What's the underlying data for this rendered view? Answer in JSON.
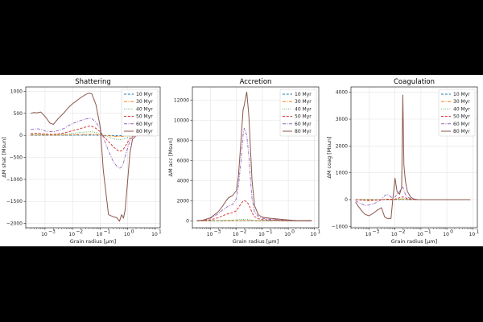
{
  "figure": {
    "background": "#ffffff"
  },
  "series_styles": [
    {
      "name": "10 Myr",
      "color": "#1f77b4",
      "dash": "3,1.8"
    },
    {
      "name": "30 Myr",
      "color": "#ff7f0e",
      "dash": "4,1.5,1,1.5"
    },
    {
      "name": "40 Myr",
      "color": "#2ca02c",
      "dash": "0.8,1.6"
    },
    {
      "name": "50 Myr",
      "color": "#d62728",
      "dash": "3,1.8"
    },
    {
      "name": "60 Myr",
      "color": "#9467bd",
      "dash": "4,1.5,1,1.5"
    },
    {
      "name": "80 Myr",
      "color": "#8c564b",
      "dash": ""
    }
  ],
  "chart_data": [
    {
      "type": "line",
      "title": "Shattering",
      "xlabel": "Grain radius [µm]",
      "ylabel": "ΔM shat [Msun]",
      "xscale": "log",
      "xlim": [
        0.0002,
        15
      ],
      "ylim": [
        -2100,
        1100
      ],
      "yticks": [
        -2000,
        -1500,
        -1000,
        -500,
        0,
        500,
        1000
      ],
      "ytick_labels": [
        "−2000",
        "−1500",
        "−1000",
        "−500",
        "0",
        "500",
        "1000"
      ],
      "xticks": [
        -3,
        -2,
        -1,
        0,
        1
      ],
      "xtick_labels": [
        "10",
        "10",
        "10",
        "10",
        "10"
      ],
      "xtick_exponents": [
        "−3",
        "−2",
        "−1",
        "0",
        "1"
      ],
      "legend": {
        "entries": [
          "10 Myr",
          "30 Myr",
          "40 Myr",
          "50 Myr",
          "60 Myr",
          "80 Myr"
        ],
        "loc": "upper right"
      },
      "x": [
        0.0003,
        0.0004,
        0.0005,
        0.0007,
        0.001,
        0.0015,
        0.002,
        0.003,
        0.005,
        0.007,
        0.01,
        0.015,
        0.02,
        0.03,
        0.04,
        0.05,
        0.07,
        0.1,
        0.13,
        0.2,
        0.3,
        0.4,
        0.5,
        0.6,
        0.7,
        0.8,
        1.0,
        1.2,
        1.5,
        2,
        3,
        5,
        8
      ],
      "series": [
        {
          "name": "10 Myr",
          "values": [
            2,
            2,
            2,
            2,
            2,
            2,
            2,
            2,
            3,
            3,
            3,
            4,
            4,
            5,
            5,
            5,
            4,
            2,
            0,
            -2,
            -4,
            -5,
            -5,
            -5,
            -4,
            -3,
            -2,
            -1,
            0,
            0,
            0,
            0,
            0
          ]
        },
        {
          "name": "30 Myr",
          "values": [
            8,
            8,
            8,
            8,
            7,
            6,
            6,
            7,
            9,
            12,
            15,
            18,
            20,
            22,
            24,
            25,
            20,
            10,
            0,
            -10,
            -20,
            -25,
            -26,
            -25,
            -22,
            -18,
            -12,
            -6,
            -2,
            0,
            0,
            0,
            0
          ]
        },
        {
          "name": "40 Myr",
          "values": [
            20,
            22,
            24,
            22,
            18,
            16,
            15,
            20,
            28,
            38,
            48,
            58,
            66,
            76,
            82,
            80,
            65,
            35,
            0,
            -40,
            -75,
            -95,
            -100,
            -95,
            -85,
            -70,
            -45,
            -25,
            -8,
            -2,
            0,
            0,
            0
          ]
        },
        {
          "name": "50 Myr",
          "values": [
            40,
            45,
            48,
            42,
            30,
            25,
            22,
            35,
            55,
            80,
            105,
            135,
            160,
            190,
            210,
            205,
            160,
            80,
            -20,
            -140,
            -260,
            -330,
            -360,
            -350,
            -310,
            -250,
            -150,
            -70,
            -20,
            -5,
            0,
            0,
            0
          ]
        },
        {
          "name": "60 Myr",
          "values": [
            130,
            145,
            150,
            140,
            100,
            85,
            80,
            110,
            160,
            220,
            270,
            310,
            340,
            370,
            390,
            380,
            300,
            150,
            -50,
            -350,
            -600,
            -700,
            -750,
            -720,
            -620,
            -480,
            -280,
            -120,
            -30,
            -5,
            0,
            0,
            0
          ]
        },
        {
          "name": "80 Myr",
          "values": [
            500,
            520,
            510,
            530,
            430,
            280,
            250,
            380,
            520,
            630,
            720,
            800,
            860,
            930,
            960,
            940,
            700,
            200,
            -800,
            -1800,
            -1850,
            -1870,
            -1950,
            -1800,
            -1880,
            -1700,
            -1000,
            -400,
            -80,
            -10,
            0,
            0,
            0
          ]
        }
      ]
    },
    {
      "type": "line",
      "title": "Accretion",
      "xlabel": "Grain radius [µm]",
      "ylabel": "ΔM acc [Msun]",
      "xscale": "log",
      "xlim": [
        0.0002,
        15
      ],
      "ylim": [
        -700,
        13300
      ],
      "yticks": [
        0,
        2000,
        4000,
        6000,
        8000,
        10000,
        12000
      ],
      "ytick_labels": [
        "0",
        "2000",
        "4000",
        "6000",
        "8000",
        "10000",
        "12000"
      ],
      "xticks": [
        -3,
        -2,
        -1,
        0,
        1
      ],
      "xtick_labels": [
        "10",
        "10",
        "10",
        "10",
        "10"
      ],
      "xtick_exponents": [
        "−3",
        "−2",
        "−1",
        "0",
        "1"
      ],
      "legend": {
        "entries": [
          "10 Myr",
          "30 Myr",
          "40 Myr",
          "50 Myr",
          "60 Myr",
          "80 Myr"
        ],
        "loc": "upper right"
      },
      "x": [
        0.0003,
        0.0005,
        0.001,
        0.002,
        0.003,
        0.004,
        0.005,
        0.007,
        0.01,
        0.012,
        0.015,
        0.018,
        0.02,
        0.025,
        0.03,
        0.035,
        0.04,
        0.05,
        0.07,
        0.1,
        0.2,
        0.5,
        1,
        2,
        5,
        8
      ],
      "series": [
        {
          "name": "10 Myr",
          "values": [
            0,
            0,
            0,
            1,
            1,
            1,
            2,
            2,
            3,
            4,
            5,
            6,
            6,
            5,
            4,
            3,
            2,
            1,
            1,
            0,
            0,
            0,
            0,
            0,
            0,
            0
          ]
        },
        {
          "name": "30 Myr",
          "values": [
            0,
            0,
            2,
            5,
            8,
            10,
            12,
            15,
            20,
            25,
            30,
            35,
            35,
            30,
            25,
            18,
            12,
            8,
            5,
            3,
            2,
            1,
            0,
            0,
            0,
            0
          ]
        },
        {
          "name": "40 Myr",
          "values": [
            0,
            5,
            10,
            20,
            30,
            40,
            50,
            70,
            90,
            110,
            130,
            145,
            150,
            140,
            120,
            90,
            60,
            40,
            25,
            15,
            8,
            4,
            2,
            0,
            0,
            0
          ]
        },
        {
          "name": "50 Myr",
          "values": [
            0,
            20,
            100,
            300,
            500,
            650,
            700,
            800,
            1000,
            1300,
            1700,
            1950,
            2000,
            1900,
            1600,
            1200,
            800,
            400,
            200,
            120,
            80,
            40,
            20,
            5,
            0,
            0
          ]
        },
        {
          "name": "60 Myr",
          "values": [
            0,
            40,
            250,
            700,
            1100,
            1300,
            1500,
            1600,
            2200,
            3500,
            6000,
            8500,
            9200,
            8500,
            6500,
            4000,
            2200,
            900,
            400,
            250,
            150,
            80,
            40,
            10,
            0,
            0
          ]
        },
        {
          "name": "80 Myr",
          "values": [
            0,
            50,
            300,
            900,
            1500,
            2000,
            2300,
            2500,
            3000,
            4500,
            8000,
            11000,
            11500,
            12800,
            10500,
            7000,
            4000,
            1500,
            600,
            350,
            250,
            150,
            80,
            20,
            0,
            0
          ]
        }
      ]
    },
    {
      "type": "line",
      "title": "Coagulation",
      "xlabel": "Grain radius [µm]",
      "ylabel": "ΔM coag [Msun]",
      "xscale": "log",
      "xlim": [
        0.0002,
        15
      ],
      "ylim": [
        -1050,
        4200
      ],
      "yticks": [
        -1000,
        0,
        1000,
        2000,
        3000,
        4000
      ],
      "ytick_labels": [
        "−1000",
        "0",
        "1000",
        "2000",
        "3000",
        "4000"
      ],
      "xticks": [
        -3,
        -2,
        -1,
        0,
        1
      ],
      "xtick_labels": [
        "10",
        "10",
        "10",
        "10",
        "10"
      ],
      "xtick_exponents": [
        "−3",
        "−2",
        "−1",
        "0",
        "1"
      ],
      "legend": {
        "entries": [
          "10 Myr",
          "30 Myr",
          "40 Myr",
          "50 Myr",
          "60 Myr",
          "80 Myr"
        ],
        "loc": "upper right"
      },
      "x": [
        0.0003,
        0.0005,
        0.0007,
        0.001,
        0.0015,
        0.002,
        0.003,
        0.004,
        0.005,
        0.007,
        0.008,
        0.01,
        0.012,
        0.015,
        0.018,
        0.02,
        0.022,
        0.025,
        0.03,
        0.04,
        0.05,
        0.07,
        0.1,
        0.2,
        0.5,
        1,
        2,
        5,
        8
      ],
      "series": [
        {
          "name": "10 Myr",
          "values": [
            0,
            0,
            0,
            0,
            0,
            0,
            0,
            0,
            0,
            0,
            0,
            0,
            1,
            1,
            2,
            3,
            3,
            2,
            1,
            0,
            0,
            0,
            0,
            0,
            0,
            0,
            0,
            0,
            0
          ]
        },
        {
          "name": "30 Myr",
          "values": [
            0,
            -2,
            -3,
            -3,
            -2,
            -2,
            0,
            2,
            3,
            2,
            1,
            3,
            5,
            8,
            10,
            12,
            10,
            8,
            5,
            2,
            1,
            0,
            0,
            0,
            0,
            0,
            0,
            0,
            0
          ]
        },
        {
          "name": "40 Myr",
          "values": [
            0,
            -5,
            -8,
            -10,
            -8,
            -6,
            0,
            5,
            8,
            5,
            3,
            8,
            15,
            25,
            35,
            40,
            35,
            25,
            15,
            5,
            2,
            1,
            0,
            0,
            0,
            0,
            0,
            0,
            0
          ]
        },
        {
          "name": "50 Myr",
          "values": [
            -5,
            -15,
            -25,
            -30,
            -25,
            -20,
            -5,
            10,
            20,
            15,
            10,
            20,
            40,
            70,
            90,
            100,
            90,
            70,
            40,
            15,
            5,
            2,
            0,
            0,
            0,
            0,
            0,
            0,
            0
          ]
        },
        {
          "name": "60 Myr",
          "values": [
            -50,
            -150,
            -220,
            -200,
            -150,
            -100,
            0,
            150,
            200,
            100,
            50,
            100,
            200,
            300,
            420,
            480,
            350,
            200,
            100,
            40,
            15,
            5,
            0,
            0,
            0,
            0,
            0,
            0,
            0
          ]
        },
        {
          "name": "80 Myr",
          "values": [
            -100,
            -400,
            -550,
            -600,
            -500,
            -400,
            -300,
            -650,
            -700,
            -700,
            -100,
            800,
            300,
            200,
            450,
            3900,
            1300,
            700,
            300,
            100,
            30,
            5,
            0,
            0,
            0,
            0,
            0,
            0,
            0
          ]
        }
      ]
    }
  ]
}
